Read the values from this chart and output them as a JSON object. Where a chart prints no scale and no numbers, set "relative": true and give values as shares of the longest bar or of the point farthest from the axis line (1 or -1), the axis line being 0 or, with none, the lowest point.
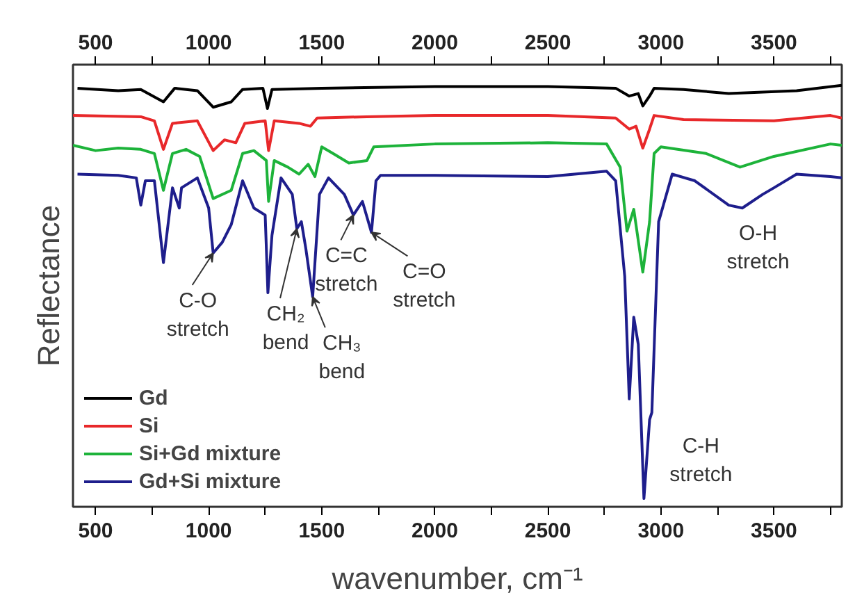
{
  "chart_data": {
    "type": "line",
    "relative": true,
    "xlabel": "wavenumber, cm⁻¹",
    "ylabel": "Reflectance",
    "xlim": [
      400,
      3800
    ],
    "xticks": [
      500,
      {
        "value": 750,
        "label": null
      },
      1000,
      {
        "value": 1250,
        "label": null
      },
      1500,
      {
        "value": 1750,
        "label": null
      },
      2000,
      {
        "value": 2250,
        "label": null
      },
      2500,
      {
        "value": 2750,
        "label": null
      },
      3000,
      {
        "value": 3250,
        "label": null
      },
      3500,
      {
        "value": 3750,
        "label": null
      }
    ],
    "x2lim": [
      400,
      3800
    ],
    "x2ticks": [
      500,
      {
        "value": 750,
        "label": null
      },
      1000,
      {
        "value": 1250,
        "label": null
      },
      1500,
      {
        "value": 1750,
        "label": null
      },
      2000,
      {
        "value": 2250,
        "label": null
      },
      2500,
      {
        "value": 2750,
        "label": null
      },
      3000,
      {
        "value": 3250,
        "label": null
      },
      3500,
      {
        "value": 3750,
        "label": null
      }
    ],
    "tick_labels": "x",
    "legend": "bottom left",
    "series": [
      {
        "name": "Gd",
        "color": "#000000",
        "x": [
          420,
          600,
          700,
          800,
          850,
          950,
          1020,
          1100,
          1150,
          1240,
          1260,
          1280,
          1500,
          2000,
          2500,
          2800,
          2860,
          2900,
          2920,
          2950,
          2970,
          3100,
          3300,
          3600,
          3800
        ],
        "values": [
          0.993,
          0.987,
          0.99,
          0.96,
          0.993,
          0.987,
          0.947,
          0.96,
          0.99,
          0.993,
          0.944,
          0.99,
          0.993,
          0.997,
          0.997,
          0.993,
          0.974,
          0.98,
          0.95,
          0.974,
          0.993,
          0.99,
          0.98,
          0.987,
          1.0
        ]
      },
      {
        "name": "Si",
        "color": "#e8282a",
        "x": [
          400,
          700,
          760,
          800,
          840,
          950,
          1020,
          1070,
          1120,
          1160,
          1250,
          1265,
          1290,
          1400,
          1450,
          1480,
          1700,
          2000,
          2500,
          2800,
          2860,
          2890,
          2920,
          2950,
          2970,
          3100,
          3500,
          3750,
          3800
        ],
        "values": [
          0.927,
          0.924,
          0.914,
          0.845,
          0.908,
          0.914,
          0.842,
          0.868,
          0.861,
          0.908,
          0.914,
          0.842,
          0.914,
          0.908,
          0.901,
          0.921,
          0.924,
          0.927,
          0.927,
          0.921,
          0.894,
          0.901,
          0.848,
          0.894,
          0.927,
          0.917,
          0.914,
          0.927,
          0.921
        ]
      },
      {
        "name": "Si+Gd mixture",
        "color": "#1db33a",
        "x": [
          400,
          500,
          600,
          700,
          760,
          800,
          840,
          900,
          960,
          1020,
          1100,
          1150,
          1200,
          1255,
          1265,
          1290,
          1350,
          1400,
          1440,
          1470,
          1500,
          1550,
          1620,
          1700,
          1730,
          2000,
          2500,
          2760,
          2820,
          2850,
          2880,
          2920,
          2950,
          2970,
          3000,
          3200,
          3350,
          3500,
          3750,
          3800
        ],
        "values": [
          0.855,
          0.842,
          0.848,
          0.845,
          0.835,
          0.746,
          0.835,
          0.845,
          0.828,
          0.726,
          0.746,
          0.835,
          0.842,
          0.818,
          0.719,
          0.818,
          0.802,
          0.785,
          0.809,
          0.779,
          0.851,
          0.835,
          0.812,
          0.818,
          0.851,
          0.858,
          0.861,
          0.858,
          0.802,
          0.647,
          0.7,
          0.548,
          0.67,
          0.835,
          0.851,
          0.835,
          0.802,
          0.828,
          0.858,
          0.855
        ]
      },
      {
        "name": "Gd+Si mixture",
        "color": "#1e1e8c",
        "x": [
          420,
          600,
          680,
          700,
          720,
          760,
          800,
          840,
          870,
          880,
          950,
          1000,
          1020,
          1060,
          1100,
          1150,
          1200,
          1250,
          1262,
          1280,
          1320,
          1370,
          1390,
          1410,
          1430,
          1460,
          1490,
          1530,
          1600,
          1640,
          1680,
          1720,
          1740,
          1760,
          2000,
          2500,
          2760,
          2800,
          2840,
          2860,
          2880,
          2900,
          2925,
          2950,
          2960,
          2990,
          3050,
          3150,
          3300,
          3360,
          3450,
          3500,
          3600,
          3750,
          3800
        ],
        "values": [
          0.785,
          0.782,
          0.776,
          0.71,
          0.769,
          0.769,
          0.571,
          0.752,
          0.703,
          0.752,
          0.776,
          0.703,
          0.594,
          0.62,
          0.663,
          0.769,
          0.703,
          0.686,
          0.498,
          0.637,
          0.776,
          0.736,
          0.653,
          0.67,
          0.604,
          0.488,
          0.736,
          0.776,
          0.736,
          0.686,
          0.719,
          0.644,
          0.769,
          0.782,
          0.782,
          0.779,
          0.792,
          0.769,
          0.538,
          0.241,
          0.439,
          0.373,
          0.0,
          0.191,
          0.208,
          0.67,
          0.785,
          0.769,
          0.71,
          0.703,
          0.736,
          0.752,
          0.785,
          0.779,
          0.776
        ]
      }
    ],
    "annotations": [
      {
        "text": "C-O\nstretch",
        "x": 1020,
        "y": 0.594
      },
      {
        "text": "CH₂\nbend",
        "x": 1390,
        "y": 0.653
      },
      {
        "text": "CH₃\nbend",
        "x": 1460,
        "y": 0.488
      },
      {
        "text": "C=C\nstretch",
        "x": 1640,
        "y": 0.686
      },
      {
        "text": "C=O\nstretch",
        "x": 1720,
        "y": 0.644
      },
      {
        "text": "O-H\nstretch",
        "x": 3350,
        "y": 0.703
      },
      {
        "text": "C-H\nstretch",
        "x": 2925,
        "y": 0.0
      }
    ]
  }
}
